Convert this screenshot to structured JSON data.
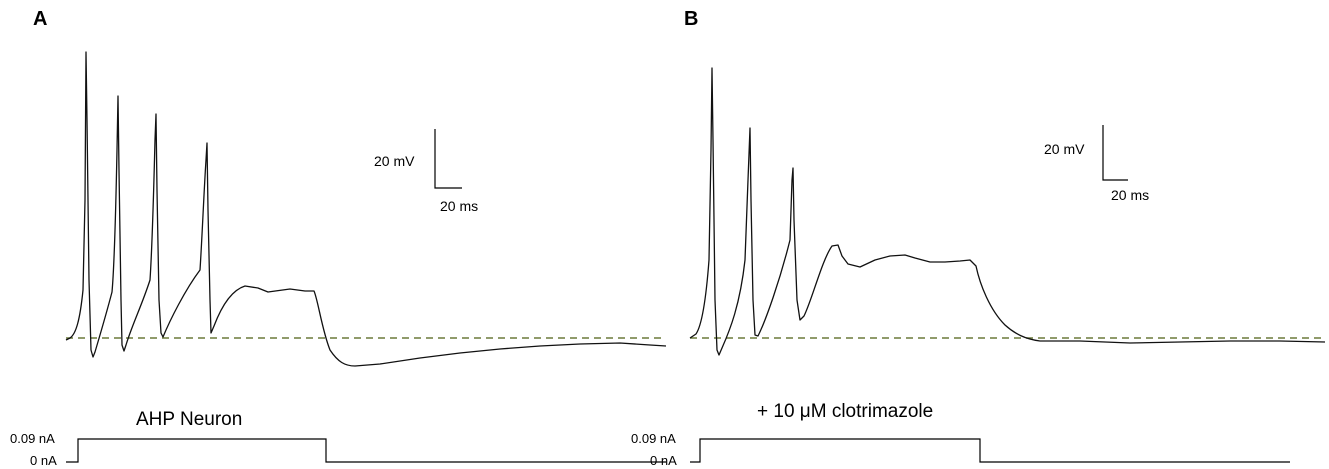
{
  "colors": {
    "trace": "#111111",
    "baseline_dashed": "#6b7a3a",
    "background": "#ffffff"
  },
  "panels": [
    {
      "letter": "A",
      "scale_mv": "20 mV",
      "scale_ms": "20 ms",
      "condition": "AHP Neuron",
      "stim_high": "0.09 nA",
      "stim_low": "0 nA"
    },
    {
      "letter": "B",
      "scale_mv": "20 mV",
      "scale_ms": "20 ms",
      "condition": "+ 10 μM clotrimazole",
      "stim_high": "0.09 nA",
      "stim_low": "0 nA"
    }
  ]
}
